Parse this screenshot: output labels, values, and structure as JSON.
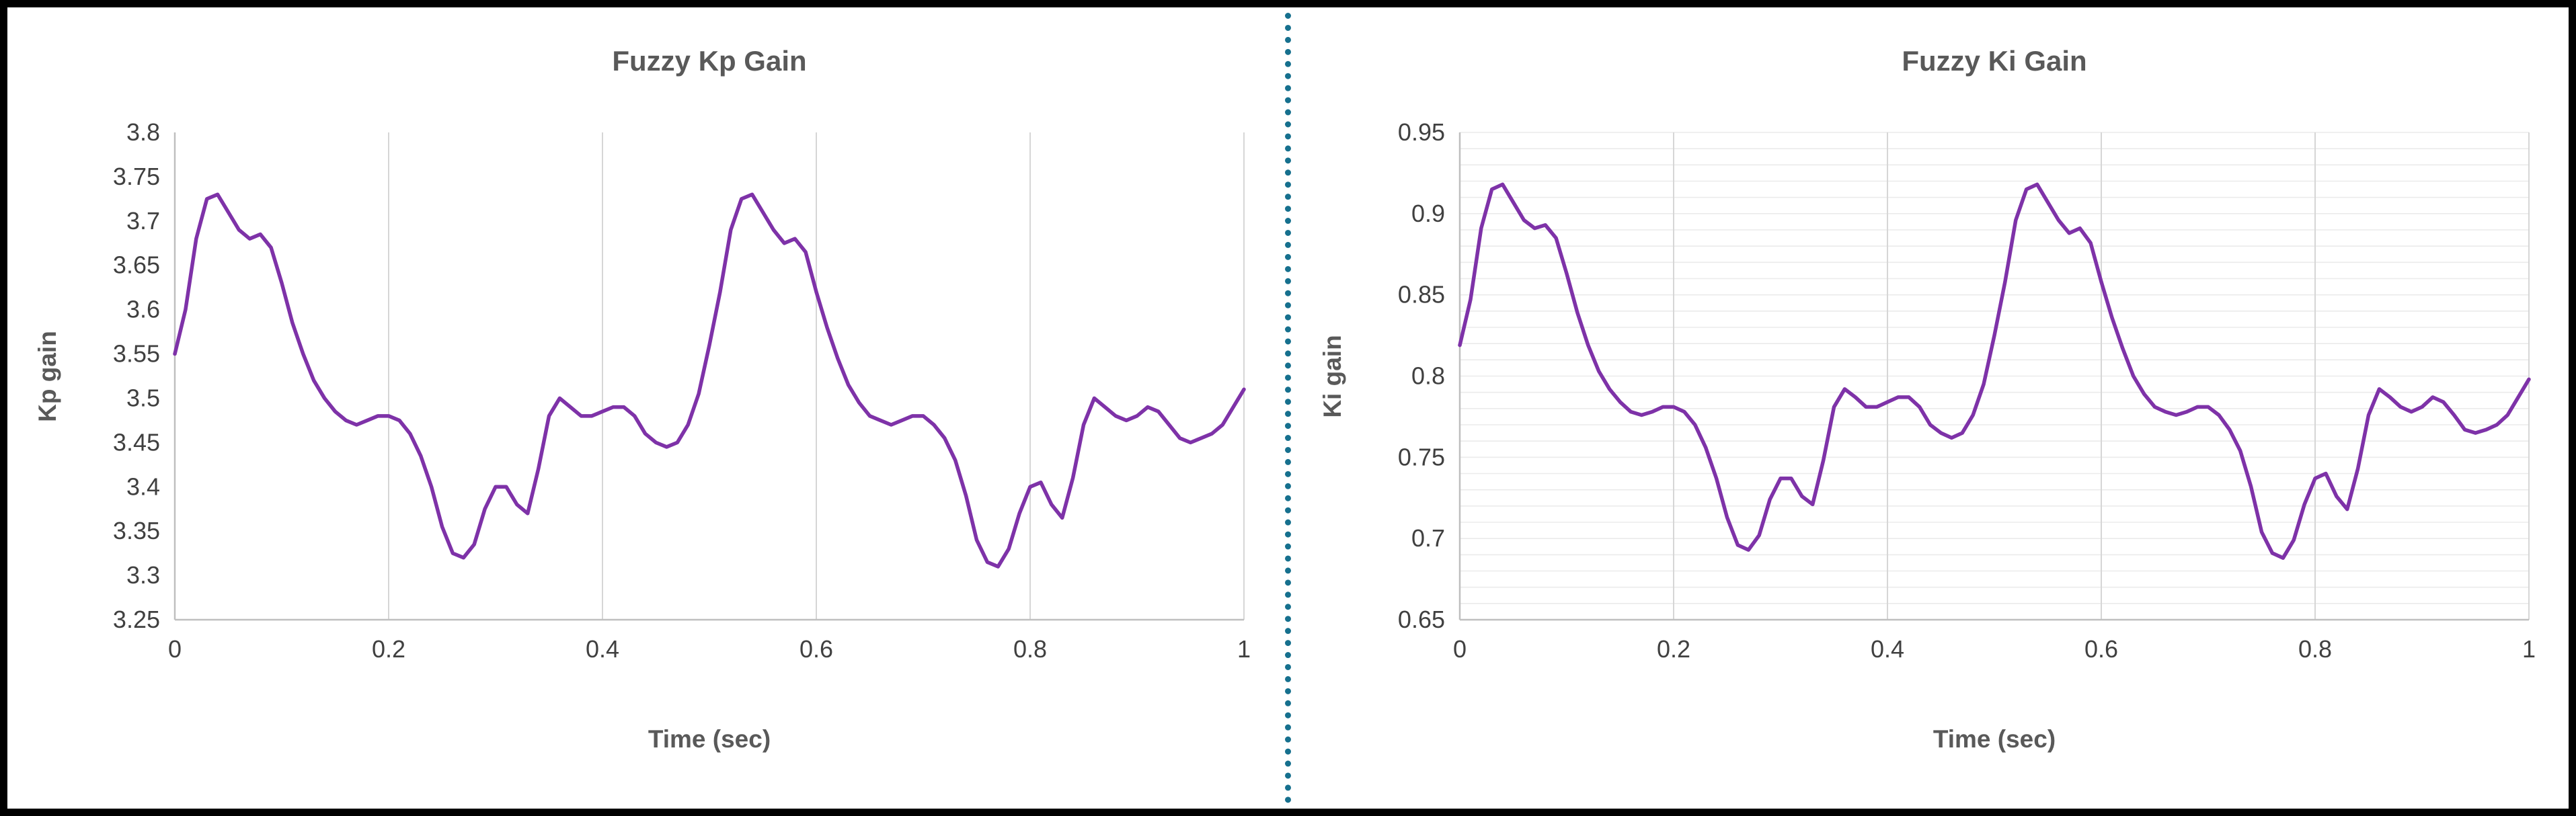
{
  "figure": {
    "border_color": "#000000",
    "divider_color": "#16708e",
    "background": "#ffffff"
  },
  "chart_data": [
    {
      "type": "line",
      "title": "Fuzzy Kp Gain",
      "xlabel": "Time (sec)",
      "ylabel": "Kp gain",
      "xlim": [
        0,
        1
      ],
      "ylim": [
        3.25,
        3.8
      ],
      "xticks": [
        0,
        0.2,
        0.4,
        0.6,
        0.8,
        1
      ],
      "xtick_labels": [
        "0",
        "0.2",
        "0.4",
        "0.6",
        "0.8",
        "1"
      ],
      "yticks": [
        3.25,
        3.3,
        3.35,
        3.4,
        3.45,
        3.5,
        3.55,
        3.6,
        3.65,
        3.7,
        3.75,
        3.8
      ],
      "ytick_labels": [
        "3.25",
        "3.3",
        "3.35",
        "3.4",
        "3.45",
        "3.5",
        "3.55",
        "3.6",
        "3.65",
        "3.7",
        "3.75",
        "3.8"
      ],
      "grid": {
        "vertical_major": true,
        "horizontal_minor": false
      },
      "minor_y_step": null,
      "legend": "none",
      "line_color": "#7e32a8",
      "x": [
        0,
        0.01,
        0.02,
        0.03,
        0.04,
        0.05,
        0.06,
        0.07,
        0.08,
        0.09,
        0.1,
        0.11,
        0.12,
        0.13,
        0.14,
        0.15,
        0.16,
        0.17,
        0.18,
        0.19,
        0.2,
        0.21,
        0.22,
        0.23,
        0.24,
        0.25,
        0.26,
        0.27,
        0.28,
        0.29,
        0.3,
        0.31,
        0.32,
        0.33,
        0.34,
        0.35,
        0.36,
        0.37,
        0.38,
        0.39,
        0.4,
        0.41,
        0.42,
        0.43,
        0.44,
        0.45,
        0.46,
        0.47,
        0.48,
        0.49,
        0.5,
        0.51,
        0.52,
        0.53,
        0.54,
        0.55,
        0.56,
        0.57,
        0.58,
        0.59,
        0.6,
        0.61,
        0.62,
        0.63,
        0.64,
        0.65,
        0.66,
        0.67,
        0.68,
        0.69,
        0.7,
        0.71,
        0.72,
        0.73,
        0.74,
        0.75,
        0.76,
        0.77,
        0.78,
        0.79,
        0.8,
        0.81,
        0.82,
        0.83,
        0.84,
        0.85,
        0.86,
        0.87,
        0.88,
        0.89,
        0.9,
        0.91,
        0.92,
        0.93,
        0.94,
        0.95,
        0.96,
        0.97,
        0.98,
        0.99,
        1
      ],
      "y": [
        3.55,
        3.6,
        3.68,
        3.725,
        3.73,
        3.71,
        3.69,
        3.68,
        3.685,
        3.67,
        3.63,
        3.585,
        3.55,
        3.52,
        3.5,
        3.485,
        3.475,
        3.47,
        3.475,
        3.48,
        3.48,
        3.475,
        3.46,
        3.435,
        3.4,
        3.355,
        3.325,
        3.32,
        3.335,
        3.375,
        3.4,
        3.4,
        3.38,
        3.37,
        3.42,
        3.48,
        3.5,
        3.49,
        3.48,
        3.48,
        3.485,
        3.49,
        3.49,
        3.48,
        3.46,
        3.45,
        3.445,
        3.45,
        3.47,
        3.505,
        3.56,
        3.62,
        3.69,
        3.725,
        3.73,
        3.71,
        3.69,
        3.675,
        3.68,
        3.665,
        3.62,
        3.58,
        3.545,
        3.515,
        3.495,
        3.48,
        3.475,
        3.47,
        3.475,
        3.48,
        3.48,
        3.47,
        3.455,
        3.43,
        3.39,
        3.34,
        3.315,
        3.31,
        3.33,
        3.37,
        3.4,
        3.405,
        3.38,
        3.365,
        3.41,
        3.47,
        3.5,
        3.49,
        3.48,
        3.475,
        3.48,
        3.49,
        3.485,
        3.47,
        3.455,
        3.45,
        3.455,
        3.46,
        3.47,
        3.49,
        3.51
      ]
    },
    {
      "type": "line",
      "title": "Fuzzy Ki Gain",
      "xlabel": "Time (sec)",
      "ylabel": "Ki gain",
      "xlim": [
        0,
        1
      ],
      "ylim": [
        0.65,
        0.95
      ],
      "xticks": [
        0,
        0.2,
        0.4,
        0.6,
        0.8,
        1
      ],
      "xtick_labels": [
        "0",
        "0.2",
        "0.4",
        "0.6",
        "0.8",
        "1"
      ],
      "yticks": [
        0.65,
        0.7,
        0.75,
        0.8,
        0.85,
        0.9,
        0.95
      ],
      "ytick_labels": [
        "0.65",
        "0.7",
        "0.75",
        "0.8",
        "0.85",
        "0.9",
        "0.95"
      ],
      "grid": {
        "vertical_major": true,
        "horizontal_minor": true
      },
      "minor_y_step": 0.01,
      "legend": "none",
      "line_color": "#7e32a8",
      "x": [
        0,
        0.01,
        0.02,
        0.03,
        0.04,
        0.05,
        0.06,
        0.07,
        0.08,
        0.09,
        0.1,
        0.11,
        0.12,
        0.13,
        0.14,
        0.15,
        0.16,
        0.17,
        0.18,
        0.19,
        0.2,
        0.21,
        0.22,
        0.23,
        0.24,
        0.25,
        0.26,
        0.27,
        0.28,
        0.29,
        0.3,
        0.31,
        0.32,
        0.33,
        0.34,
        0.35,
        0.36,
        0.37,
        0.38,
        0.39,
        0.4,
        0.41,
        0.42,
        0.43,
        0.44,
        0.45,
        0.46,
        0.47,
        0.48,
        0.49,
        0.5,
        0.51,
        0.52,
        0.53,
        0.54,
        0.55,
        0.56,
        0.57,
        0.58,
        0.59,
        0.6,
        0.61,
        0.62,
        0.63,
        0.64,
        0.65,
        0.66,
        0.67,
        0.68,
        0.69,
        0.7,
        0.71,
        0.72,
        0.73,
        0.74,
        0.75,
        0.76,
        0.77,
        0.78,
        0.79,
        0.8,
        0.81,
        0.82,
        0.83,
        0.84,
        0.85,
        0.86,
        0.87,
        0.88,
        0.89,
        0.9,
        0.91,
        0.92,
        0.93,
        0.94,
        0.95,
        0.96,
        0.97,
        0.98,
        0.99,
        1
      ],
      "y": [
        0.819,
        0.847,
        0.891,
        0.915,
        0.918,
        0.907,
        0.896,
        0.891,
        0.893,
        0.885,
        0.863,
        0.839,
        0.819,
        0.803,
        0.792,
        0.784,
        0.778,
        0.776,
        0.778,
        0.781,
        0.781,
        0.778,
        0.77,
        0.756,
        0.737,
        0.713,
        0.696,
        0.693,
        0.702,
        0.724,
        0.737,
        0.737,
        0.726,
        0.721,
        0.748,
        0.781,
        0.792,
        0.787,
        0.781,
        0.781,
        0.784,
        0.787,
        0.787,
        0.781,
        0.77,
        0.765,
        0.762,
        0.765,
        0.776,
        0.795,
        0.825,
        0.858,
        0.896,
        0.915,
        0.918,
        0.907,
        0.896,
        0.888,
        0.891,
        0.882,
        0.858,
        0.836,
        0.817,
        0.8,
        0.789,
        0.781,
        0.778,
        0.776,
        0.778,
        0.781,
        0.781,
        0.776,
        0.767,
        0.754,
        0.732,
        0.704,
        0.691,
        0.688,
        0.699,
        0.721,
        0.737,
        0.74,
        0.726,
        0.718,
        0.743,
        0.776,
        0.792,
        0.787,
        0.781,
        0.778,
        0.781,
        0.787,
        0.784,
        0.776,
        0.767,
        0.765,
        0.767,
        0.77,
        0.776,
        0.787,
        0.798
      ]
    }
  ]
}
